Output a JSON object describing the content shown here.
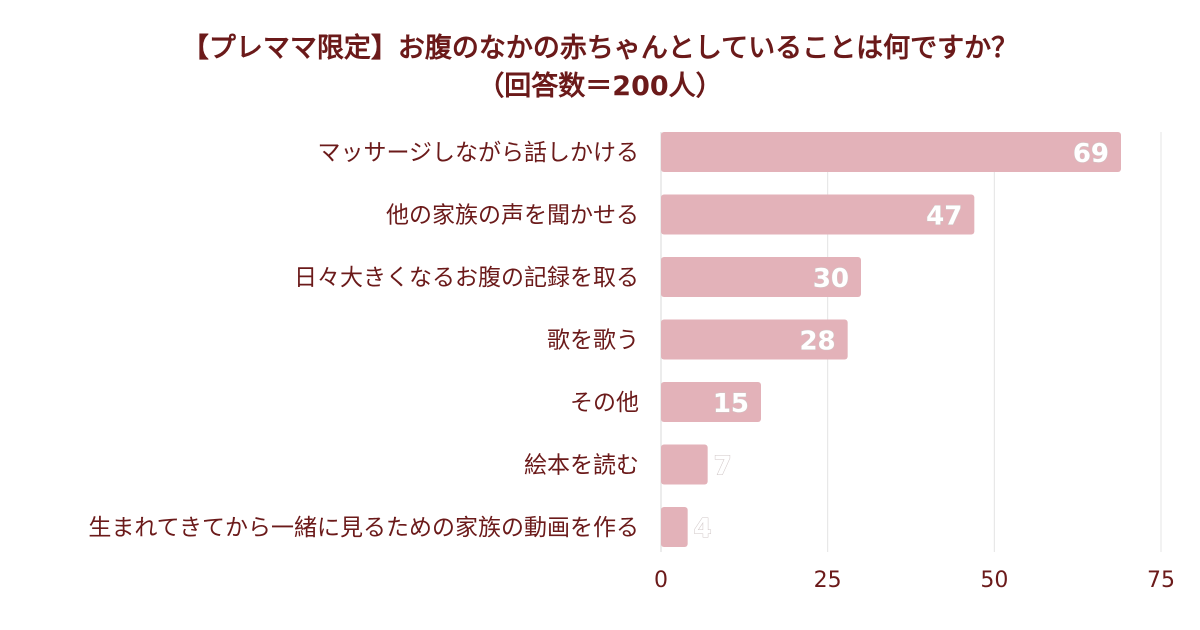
{
  "title_line1": "【プレママ限定】お腹のなかの赤ちゃんとしていることは何ですか？",
  "title_line2": "（回答数＝200人）",
  "chart_data": {
    "type": "bar",
    "orientation": "horizontal",
    "title": "【プレママ限定】お腹のなかの赤ちゃんとしていることは何ですか？（回答数＝200人）",
    "categories": [
      "マッサージしながら話しかける",
      "他の家族の声を聞かせる",
      "日々大きくなるお腹の記録を取る",
      "歌を歌う",
      "その他",
      "絵本を読む",
      "生まれてきてから一緒に見るための家族の動画を作る"
    ],
    "values": [
      69,
      47,
      30,
      28,
      15,
      7,
      4
    ],
    "xlim": [
      0,
      75
    ],
    "xticks": [
      0,
      25,
      50,
      75
    ],
    "grid": true,
    "bar_color": "#e3b2b9",
    "text_color": "#6b1a1a"
  }
}
